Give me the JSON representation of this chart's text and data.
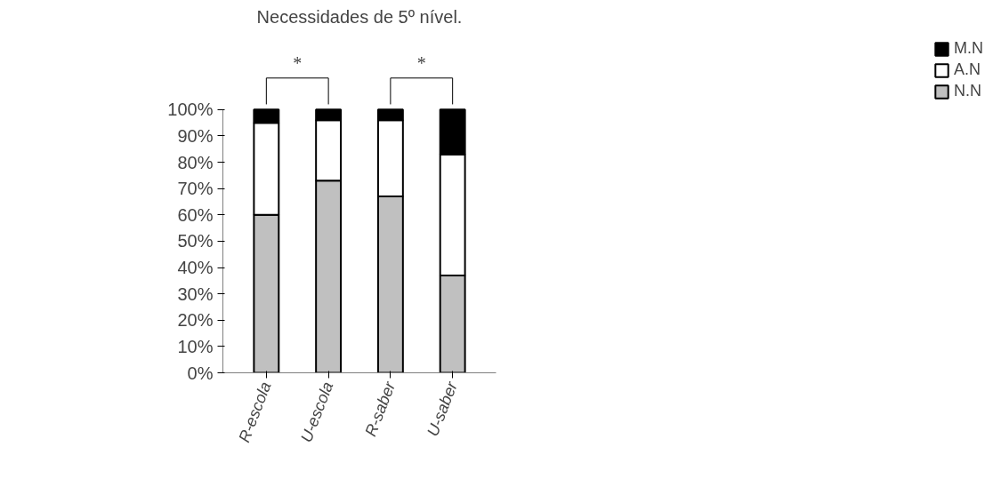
{
  "chart_data": {
    "type": "bar",
    "title": "Necessidades de 5º nível.",
    "stacked": true,
    "categories": [
      "R-escola",
      "U-escola",
      "R-saber",
      "U-saber"
    ],
    "series": [
      {
        "name": "N.N",
        "color": "#c0c0c0",
        "values": [
          60,
          73,
          67,
          37
        ]
      },
      {
        "name": "A.N",
        "color": "#ffffff",
        "values": [
          35,
          23,
          29,
          46
        ]
      },
      {
        "name": "M.N",
        "color": "#000000",
        "values": [
          5,
          4,
          4,
          17
        ]
      }
    ],
    "ylim": [
      0,
      100
    ],
    "yticks": [
      {
        "value": 0,
        "label": "0%"
      },
      {
        "value": 10,
        "label": "10%"
      },
      {
        "value": 20,
        "label": "20%"
      },
      {
        "value": 30,
        "label": "30%"
      },
      {
        "value": 40,
        "label": "40%"
      },
      {
        "value": 50,
        "label": "50%"
      },
      {
        "value": 60,
        "label": "60%"
      },
      {
        "value": 70,
        "label": "70%"
      },
      {
        "value": 80,
        "label": "80%"
      },
      {
        "value": 90,
        "label": "90%"
      },
      {
        "value": 100,
        "label": "100%"
      }
    ],
    "annotations": [
      "*",
      "*"
    ],
    "grid": false,
    "legend": "right"
  }
}
